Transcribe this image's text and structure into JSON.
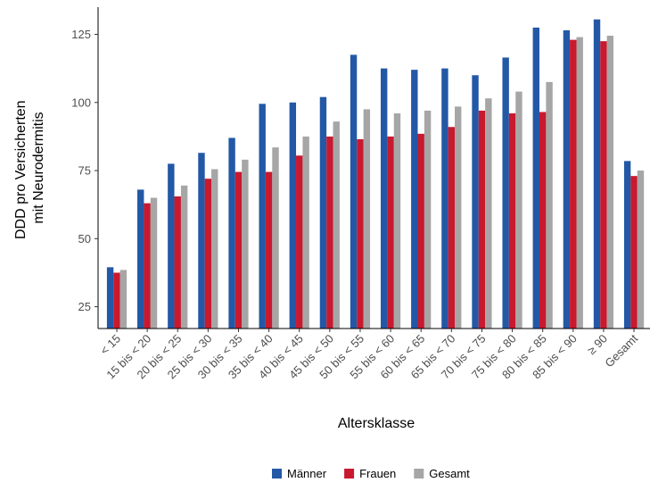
{
  "chart_data": {
    "type": "bar",
    "title": "",
    "xlabel": "Altersklasse",
    "ylabel_lines": [
      "DDD pro Versicherten",
      "mit Neurodermitis"
    ],
    "ylim": [
      17,
      135
    ],
    "yticks": [
      25,
      50,
      75,
      100,
      125
    ],
    "categories": [
      "< 15",
      "15 bis < 20",
      "20 bis < 25",
      "25 bis < 30",
      "30 bis < 35",
      "35 bis < 40",
      "40 bis < 45",
      "45 bis < 50",
      "50 bis < 55",
      "55 bis < 60",
      "60 bis < 65",
      "65 bis < 70",
      "70 bis < 75",
      "75 bis < 80",
      "80 bis < 85",
      "85 bis < 90",
      "≥ 90",
      "Gesamt"
    ],
    "series": [
      {
        "name": "Männer",
        "color": "#2358A6",
        "values": [
          39.5,
          68,
          77.5,
          81.5,
          87,
          99.5,
          100,
          102,
          117.5,
          112.5,
          112,
          112.5,
          110,
          116.5,
          127.5,
          126.5,
          130.5,
          78.5
        ]
      },
      {
        "name": "Frauen",
        "color": "#C8192E",
        "values": [
          37.5,
          63,
          65.5,
          72,
          74.5,
          74.5,
          80.5,
          87.5,
          86.5,
          87.5,
          88.5,
          91,
          97,
          96,
          96.5,
          123,
          122.5,
          73
        ]
      },
      {
        "name": "Gesamt",
        "color": "#A6A6A6",
        "values": [
          38.5,
          65,
          69.5,
          75.5,
          79,
          83.5,
          87.5,
          93,
          97.5,
          96,
          97,
          98.5,
          101.5,
          104,
          107.5,
          124,
          124.5,
          75
        ]
      }
    ],
    "grid": false,
    "legend_position": "bottom"
  }
}
